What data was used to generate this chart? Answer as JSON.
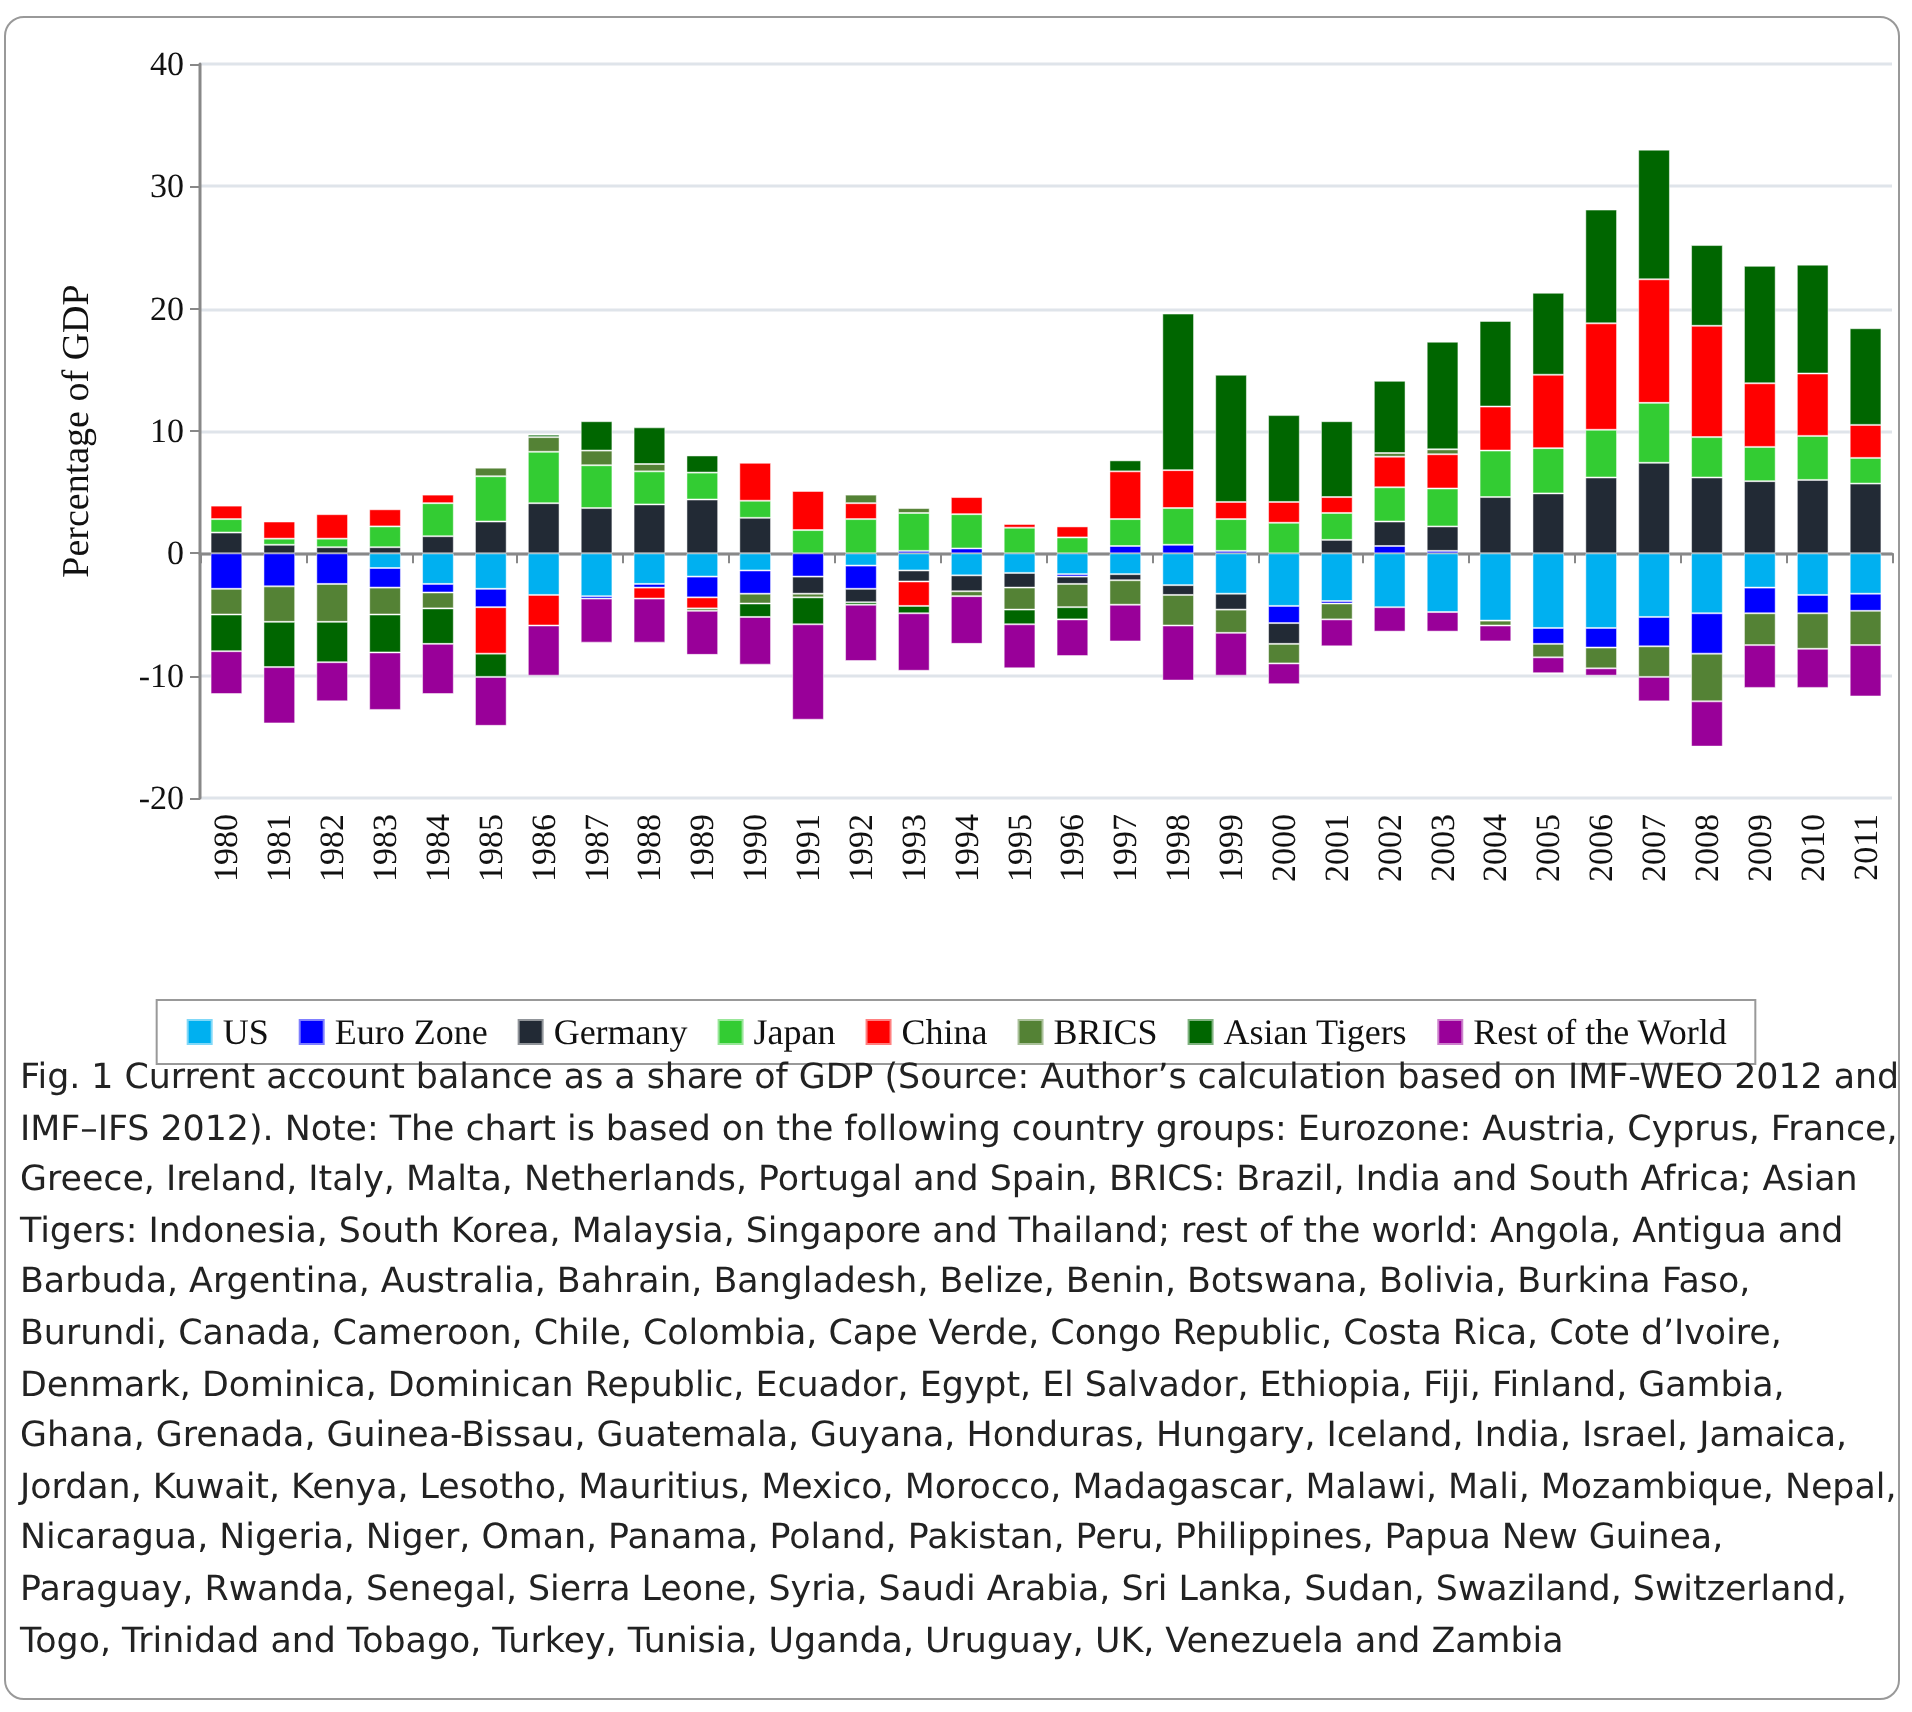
{
  "chart_data": {
    "type": "bar",
    "stacked": true,
    "ylabel": "Percentage of GDP",
    "categories": [
      "1980",
      "1981",
      "1982",
      "1983",
      "1984",
      "1985",
      "1986",
      "1987",
      "1988",
      "1989",
      "1990",
      "1991",
      "1992",
      "1993",
      "1994",
      "1995",
      "1996",
      "1997",
      "1998",
      "1999",
      "2000",
      "2001",
      "2002",
      "2003",
      "2004",
      "2005",
      "2006",
      "2007",
      "2008",
      "2009",
      "2010",
      "2011"
    ],
    "series": [
      {
        "name": "US",
        "color": "#00b0f0",
        "values": [
          null,
          null,
          null,
          -1.2,
          -2.5,
          -2.9,
          -3.4,
          -3.5,
          -2.5,
          -1.9,
          -1.4,
          null,
          -1.0,
          -1.4,
          -1.8,
          -1.6,
          -1.7,
          -1.7,
          -2.6,
          -3.3,
          -4.3,
          -3.9,
          -4.4,
          -4.8,
          -5.5,
          -6.1,
          -6.1,
          -5.2,
          -4.9,
          -2.8,
          -3.4,
          -3.3
        ]
      },
      {
        "name": "Euro Zone",
        "color": "#0000ff",
        "values": [
          -2.9,
          -2.7,
          -2.5,
          -1.6,
          -0.7,
          -1.5,
          null,
          -0.2,
          -0.3,
          -1.7,
          -1.9,
          -1.9,
          -1.9,
          0.2,
          0.4,
          null,
          -0.2,
          0.6,
          0.7,
          0.2,
          -1.4,
          -0.2,
          0.6,
          0.2,
          null,
          -1.3,
          -1.6,
          -2.4,
          -3.3,
          -2.1,
          -1.5,
          -1.4
        ]
      },
      {
        "name": "Germany",
        "color": "#222a35",
        "values": [
          1.7,
          0.7,
          0.5,
          0.5,
          1.4,
          2.6,
          4.1,
          3.7,
          4.0,
          4.4,
          2.9,
          -1.4,
          -1.1,
          -0.9,
          -1.3,
          -1.2,
          -0.6,
          -0.5,
          -0.8,
          -1.3,
          -1.7,
          1.1,
          2.0,
          2.0,
          4.6,
          4.9,
          6.2,
          7.4,
          6.2,
          5.9,
          6.0,
          5.7
        ]
      },
      {
        "name": "Japan",
        "color": "#33cc33",
        "values": [
          1.1,
          0.5,
          0.7,
          1.7,
          2.7,
          3.7,
          4.2,
          3.5,
          2.7,
          2.2,
          1.4,
          1.9,
          2.8,
          3.1,
          2.8,
          2.1,
          1.3,
          2.2,
          3.0,
          2.6,
          2.5,
          2.2,
          2.8,
          3.1,
          3.8,
          3.7,
          3.9,
          4.9,
          3.3,
          2.8,
          3.6,
          2.1
        ]
      },
      {
        "name": "China",
        "color": "#ff0000",
        "values": [
          1.1,
          1.4,
          2.0,
          1.4,
          0.7,
          -3.8,
          -2.5,
          null,
          -0.9,
          -0.9,
          3.1,
          3.2,
          1.3,
          -2.0,
          1.4,
          0.3,
          0.9,
          3.9,
          3.1,
          1.4,
          1.7,
          1.3,
          2.5,
          2.8,
          3.6,
          6.0,
          8.7,
          10.1,
          9.1,
          5.2,
          5.1,
          2.7
        ]
      },
      {
        "name": "BRICS",
        "color": "#548235",
        "values": [
          -2.1,
          -2.9,
          -3.1,
          -2.2,
          -1.3,
          0.7,
          1.2,
          1.2,
          0.6,
          -0.2,
          -0.8,
          -0.3,
          0.7,
          0.4,
          -0.4,
          -1.8,
          -1.9,
          -2.0,
          -2.5,
          -1.9,
          -1.6,
          -1.3,
          0.3,
          0.4,
          -0.4,
          -1.1,
          -1.7,
          -2.5,
          -3.9,
          -2.6,
          -2.9,
          -2.8
        ]
      },
      {
        "name": "Asian Tigers",
        "color": "#006600",
        "values": [
          -3.0,
          -3.7,
          -3.3,
          -3.1,
          -2.9,
          -1.9,
          0.2,
          2.4,
          3.0,
          1.4,
          -1.1,
          -2.2,
          -0.2,
          -0.6,
          null,
          -1.2,
          -1.0,
          0.9,
          12.8,
          10.4,
          7.1,
          6.2,
          5.9,
          8.8,
          7.0,
          6.7,
          9.3,
          10.6,
          6.6,
          9.6,
          8.9,
          7.9
        ]
      },
      {
        "name": "Rest of the World",
        "color": "#990099",
        "values": [
          -3.5,
          -4.6,
          -3.2,
          -4.7,
          -4.1,
          -4.0,
          -4.1,
          -3.6,
          -3.6,
          -3.6,
          -3.9,
          -7.8,
          -4.6,
          -4.7,
          -3.9,
          -3.6,
          -3.0,
          -3.0,
          -4.5,
          -3.5,
          -1.7,
          -2.2,
          -2.0,
          -1.6,
          -1.3,
          -1.3,
          -0.6,
          -2.0,
          -3.7,
          -3.5,
          -3.2,
          -4.2
        ]
      }
    ],
    "ylim": [
      -20,
      40
    ],
    "yticks": [
      -20,
      -10,
      0,
      10,
      20,
      30,
      40
    ],
    "grid": "y",
    "legend": "bottom",
    "annotations": [
      "Fig. 1  Current account balance as a share of GDP (Source: Author’s calculation based on IMF-WEO 2012 and IMF–IFS 2012). Note: The chart is based on the following country groups: Eurozone: Austria, Cyprus, France, Greece, Ireland, Italy, Malta, Netherlands, Portugal and Spain, BRICS: Brazil, India and South Africa; Asian Tigers: Indonesia, South Korea, Malaysia, Singapore and Thailand; rest of the world: Angola, Antigua and Barbuda, Argentina, Australia, Bahrain, Bangladesh, Belize, Benin, Botswana, Bolivia, Burkina Faso, Burundi, Canada, Cameroon, Chile, Colombia, Cape Verde, Congo Republic, Costa Rica, Cote d’Ivoire, Denmark, Dominica, Dominican Republic, Ecuador, Egypt, El Salvador, Ethiopia, Fiji, Finland, Gambia, Ghana, Grenada, Guinea-Bissau, Guatemala, Guyana, Honduras, Hungary, Iceland, India, Israel, Jamaica, Jordan, Kuwait, Kenya, Lesotho, Mauritius, Mexico, Morocco, Madagascar, Malawi, Mali, Mozambique, Nepal, Nicaragua, Nigeria, Niger, Oman, Panama, Poland, Pakistan, Peru, Philippines, Papua New Guinea, Paraguay, Rwanda, Senegal, Sierra Leone, Syria, Saudi Arabia, Sri Lanka, Sudan, Swaziland, Switzerland, Togo, Trinidad and Tobago, Turkey, Tunisia, Uganda, Uruguay, UK, Venezuela and Zambia"
    ]
  }
}
